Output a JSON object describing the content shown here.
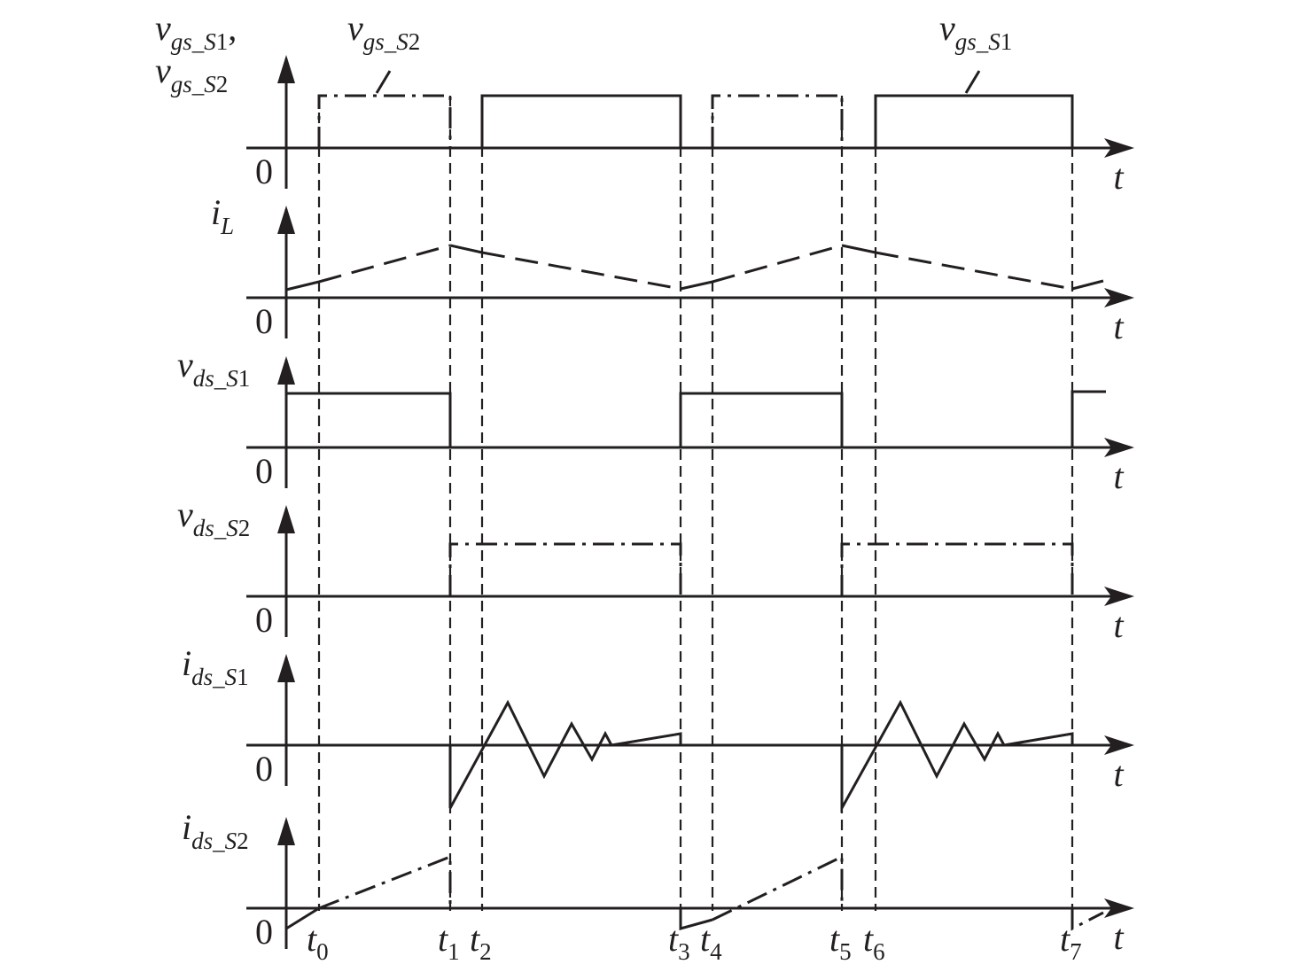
{
  "colors": {
    "ink": "#231f20",
    "background": "#ffffff"
  },
  "time_label": "t",
  "zero_label": "0",
  "time_markers": [
    {
      "base": "t",
      "sub": "0"
    },
    {
      "base": "t",
      "sub": "1"
    },
    {
      "base": "t",
      "sub": "2"
    },
    {
      "base": "t",
      "sub": "3"
    },
    {
      "base": "t",
      "sub": "4"
    },
    {
      "base": "t",
      "sub": "5"
    },
    {
      "base": "t",
      "sub": "6"
    },
    {
      "base": "t",
      "sub": "7"
    }
  ],
  "panels": [
    {
      "id": "vgs",
      "label_lines": [
        [
          {
            "t": "v",
            "s": "gs"
          },
          {
            "t": "_",
            "s": ""
          },
          {
            "t": "",
            "s": "S",
            "n": "1"
          },
          {
            "t": ",",
            "s": ""
          }
        ],
        [
          {
            "t": "v",
            "s": "gs"
          },
          {
            "t": "_",
            "s": ""
          },
          {
            "t": "",
            "s": "S",
            "n": "2"
          }
        ]
      ],
      "callouts": [
        {
          "base": "v",
          "sub": "gs_S",
          "num": "2"
        },
        {
          "base": "v",
          "sub": "gs_S",
          "num": "1"
        }
      ]
    },
    {
      "id": "iL",
      "base": "i",
      "sub": "L"
    },
    {
      "id": "vds1",
      "base": "v",
      "sub": "ds_S",
      "num": "1"
    },
    {
      "id": "vds2",
      "base": "v",
      "sub": "ds_S",
      "num": "2"
    },
    {
      "id": "ids1",
      "base": "i",
      "sub": "ds_S",
      "num": "1"
    },
    {
      "id": "ids2",
      "base": "i",
      "sub": "ds_S",
      "num": "2"
    }
  ]
}
